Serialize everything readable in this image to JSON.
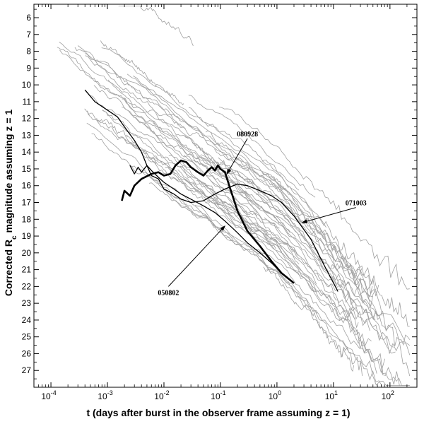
{
  "chart_data": {
    "type": "line",
    "xlabel": "t (days after burst in the observer frame assuming z = 1)",
    "ylabel_main": "Corrected R",
    "ylabel_sub": "c",
    "ylabel_rest": " magnitude assuming z = 1",
    "x_scale": "log",
    "xlim": [
      5e-05,
      300
    ],
    "ylim": [
      28,
      5.2
    ],
    "y_inverted": true,
    "grid": false,
    "x_ticks": [
      {
        "value": 0.0001,
        "base": "10",
        "exp": "-4"
      },
      {
        "value": 0.001,
        "base": "10",
        "exp": "-3"
      },
      {
        "value": 0.01,
        "base": "10",
        "exp": "-2"
      },
      {
        "value": 0.1,
        "base": "10",
        "exp": "-1"
      },
      {
        "value": 1,
        "base": "10",
        "exp": "0"
      },
      {
        "value": 10,
        "base": "10",
        "exp": "1"
      },
      {
        "value": 100,
        "base": "10",
        "exp": "2"
      }
    ],
    "y_ticks": [
      "6",
      "7",
      "8",
      "9",
      "10",
      "11",
      "12",
      "13",
      "14",
      "15",
      "16",
      "17",
      "18",
      "19",
      "20",
      "21",
      "22",
      "23",
      "24",
      "25",
      "26",
      "27"
    ],
    "series": [
      {
        "name": "080928",
        "style": "bold",
        "color": "#000000",
        "x": [
          0.0018,
          0.002,
          0.0025,
          0.003,
          0.004,
          0.006,
          0.008,
          0.01,
          0.013,
          0.016,
          0.02,
          0.025,
          0.03,
          0.04,
          0.05,
          0.06,
          0.07,
          0.08,
          0.09,
          0.1,
          0.12,
          0.15,
          0.2,
          0.3,
          0.5,
          0.8,
          1.2,
          2.0
        ],
        "y": [
          16.9,
          16.3,
          16.6,
          16.0,
          15.6,
          15.3,
          15.2,
          15.4,
          15.3,
          14.8,
          14.5,
          14.6,
          14.9,
          15.2,
          15.4,
          15.1,
          14.9,
          15.1,
          14.8,
          15.0,
          15.2,
          16.2,
          17.5,
          18.7,
          19.6,
          20.5,
          21.2,
          21.8
        ]
      },
      {
        "name": "071003",
        "style": "normal",
        "color": "#000000",
        "x": [
          0.0004,
          0.0006,
          0.001,
          0.0015,
          0.002,
          0.003,
          0.004,
          0.005,
          0.006,
          0.008,
          0.01,
          0.015,
          0.02,
          0.03,
          0.05,
          0.08,
          0.12,
          0.2,
          0.3,
          0.5,
          0.8,
          1.2,
          2.0,
          4.0,
          7.0,
          12.0
        ],
        "y": [
          10.3,
          11.0,
          11.5,
          11.9,
          12.5,
          13.3,
          14.0,
          14.8,
          15.4,
          15.6,
          16.2,
          16.5,
          16.8,
          17.0,
          16.9,
          16.5,
          16.2,
          15.9,
          16.0,
          16.3,
          16.6,
          17.0,
          17.8,
          19.2,
          20.8,
          22.3
        ]
      },
      {
        "name": "050802",
        "style": "normal",
        "color": "#000000",
        "x": [
          0.0025,
          0.003,
          0.0035,
          0.004,
          0.005,
          0.006,
          0.008,
          0.01,
          0.015,
          0.02,
          0.03,
          0.05,
          0.08,
          0.12,
          0.2,
          0.3,
          0.5,
          0.8,
          1.2,
          2.0
        ],
        "y": [
          14.8,
          15.3,
          14.9,
          15.2,
          14.8,
          15.1,
          15.5,
          15.8,
          16.2,
          16.5,
          16.8,
          17.2,
          17.6,
          18.1,
          18.8,
          19.4,
          20.0,
          20.6,
          21.2,
          21.8
        ]
      }
    ],
    "background_series_color": "#a0a0a0",
    "annotations": [
      {
        "text": "080928",
        "x": 0.3,
        "y": 13.2,
        "arrow_to_x": 0.13,
        "arrow_to_y": 15.3
      },
      {
        "text": "071003",
        "x": 25,
        "y": 17.3,
        "arrow_to_x": 2.8,
        "arrow_to_y": 18.2
      },
      {
        "text": "050802",
        "x": 0.012,
        "y": 22.0,
        "arrow_to_x": 0.12,
        "arrow_to_y": 18.4
      }
    ]
  }
}
